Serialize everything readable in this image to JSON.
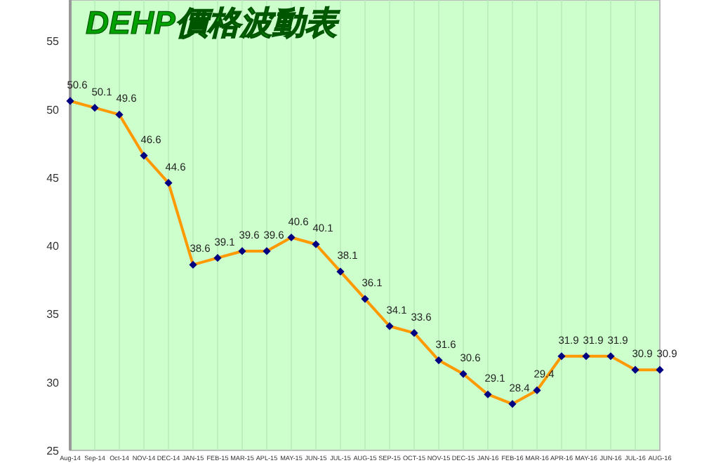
{
  "chart_data": {
    "type": "line",
    "title": "DEHP價格波動表",
    "categories": [
      "Aug-14",
      "Sep-14",
      "Oct-14",
      "NOV-14",
      "DEC-14",
      "JAN-15",
      "FEB-15",
      "MAR-15",
      "APL-15",
      "MAY-15",
      "JUN-15",
      "JUL-15",
      "AUG-15",
      "SEP-15",
      "OCT-15",
      "NOV-15",
      "DEC-15",
      "JAN-16",
      "FEB-16",
      "MAR-16",
      "APR-16",
      "MAY-16",
      "JUN-16",
      "JUL-16",
      "AUG-16"
    ],
    "series": [
      {
        "color": "#ff9900",
        "values": [
          50.6,
          50.1,
          49.6,
          46.6,
          44.6,
          38.6,
          39.1,
          39.6,
          39.6,
          40.6,
          40.1,
          38.1,
          36.1,
          34.1,
          33.6,
          31.6,
          30.6,
          29.1,
          28.4,
          29.4,
          31.9,
          31.9,
          31.9,
          30.9,
          30.9
        ]
      }
    ],
    "ylim": [
      25,
      58
    ],
    "yticks": [
      25,
      30,
      35,
      40,
      45,
      50,
      55
    ],
    "grid": "x",
    "marker": "diamond",
    "line_style": "solid",
    "data_labels": true
  }
}
